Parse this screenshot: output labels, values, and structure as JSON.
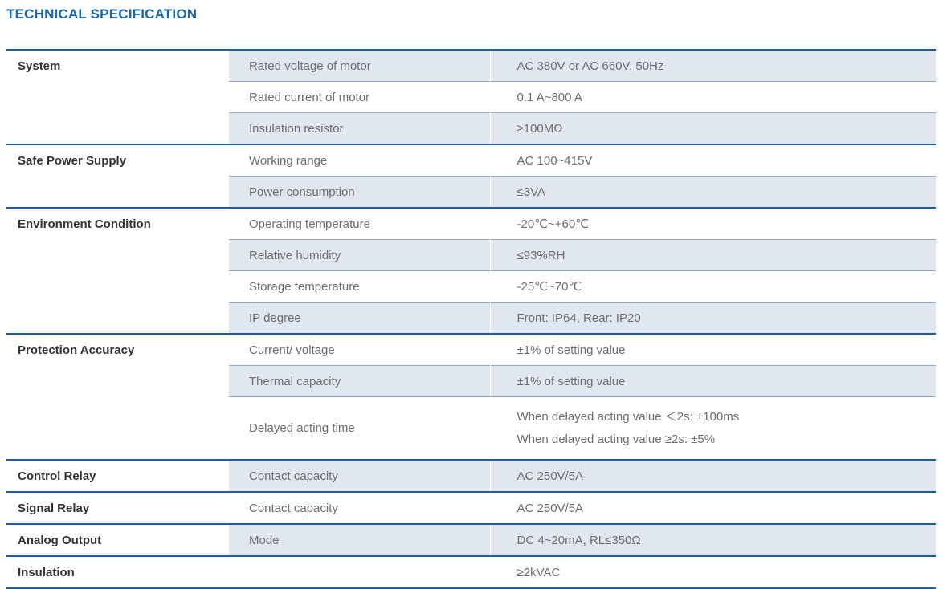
{
  "title": "TECHNICAL SPECIFICATION",
  "rows": [
    {
      "category": "System",
      "parameter": "Rated voltage of motor",
      "value": "AC 380V or AC 660V, 50Hz"
    },
    {
      "category": "",
      "parameter": "Rated current of motor",
      "value": "0.1 A~800 A"
    },
    {
      "category": "",
      "parameter": "Insulation resistor",
      "value": "≥100MΩ"
    },
    {
      "category": "Safe Power Supply",
      "parameter": "Working range",
      "value": "AC 100~415V"
    },
    {
      "category": "",
      "parameter": "Power consumption",
      "value": "≤3VA"
    },
    {
      "category": "Environment Condition",
      "parameter": "Operating temperature",
      "value": "-20℃~+60℃"
    },
    {
      "category": "",
      "parameter": "Relative humidity",
      "value": "≤93%RH"
    },
    {
      "category": "",
      "parameter": "Storage temperature",
      "value": "-25℃~70℃"
    },
    {
      "category": "",
      "parameter": "IP degree",
      "value": "Front: IP64, Rear: IP20"
    },
    {
      "category": "Protection Accuracy",
      "parameter": "Current/ voltage",
      "value": "±1% of setting value"
    },
    {
      "category": "",
      "parameter": "Thermal capacity",
      "value": "±1% of setting value"
    },
    {
      "category": "",
      "parameter": "Delayed acting time",
      "value": "When delayed acting value ＜2s: ±100ms",
      "value2": "When delayed acting value ≥2s: ±5%"
    },
    {
      "category": "Control Relay",
      "parameter": "Contact capacity",
      "value": "AC 250V/5A"
    },
    {
      "category": "Signal Relay",
      "parameter": "Contact capacity",
      "value": "AC 250V/5A"
    },
    {
      "category": "Analog Output",
      "parameter": "Mode",
      "value": "DC 4~20mA, RL≤350Ω"
    },
    {
      "category": "Insulation",
      "parameter": "",
      "value": "≥2kVAC"
    }
  ],
  "colors": {
    "title": "#1767b3",
    "rule": "#1f5d9c",
    "shade": "#e1e7f1"
  }
}
